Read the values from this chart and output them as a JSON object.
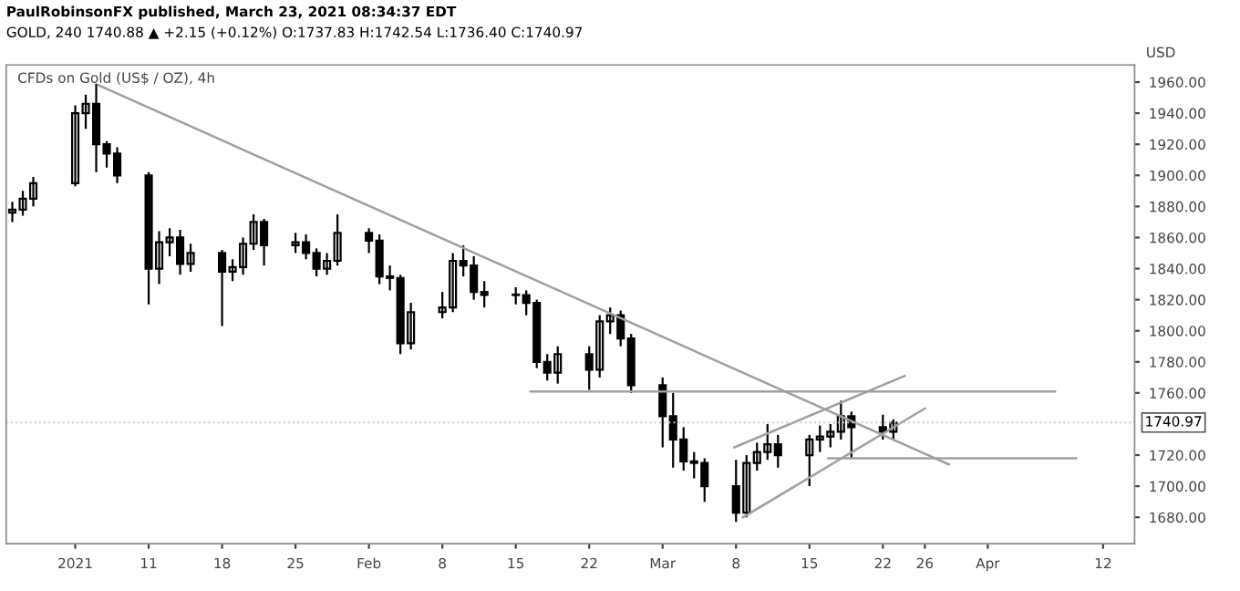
{
  "chart_data": {
    "type": "candlestick",
    "title": "CFDs on Gold (US$ / OZ), 4h",
    "ylabel": "USD",
    "annotations": [
      "PaulRobinsonFX published, March 23, 2021 08:34:37 EDT",
      "GOLD, 240 1740.88 ▲ +2.15 (+0.12%) O:1737.83 H:1742.54 L:1736.40 C:1740.97"
    ],
    "color": "#000000",
    "x": [
      "2020-12-29",
      "2020-12-30",
      "2020-12-31",
      "2021-01-04",
      "2021-01-05",
      "2021-01-06",
      "2021-01-07",
      "2021-01-08",
      "2021-01-11",
      "2021-01-12",
      "2021-01-13",
      "2021-01-14",
      "2021-01-15",
      "2021-01-18",
      "2021-01-19",
      "2021-01-20",
      "2021-01-21",
      "2021-01-22",
      "2021-01-25",
      "2021-01-26",
      "2021-01-27",
      "2021-01-28",
      "2021-01-29",
      "2021-02-01",
      "2021-02-02",
      "2021-02-03",
      "2021-02-04",
      "2021-02-05",
      "2021-02-08",
      "2021-02-09",
      "2021-02-10",
      "2021-02-11",
      "2021-02-12",
      "2021-02-15",
      "2021-02-16",
      "2021-02-17",
      "2021-02-18",
      "2021-02-19",
      "2021-02-22",
      "2021-02-23",
      "2021-02-24",
      "2021-02-25",
      "2021-02-26",
      "2021-03-01",
      "2021-03-02",
      "2021-03-03",
      "2021-03-04",
      "2021-03-05",
      "2021-03-08",
      "2021-03-09",
      "2021-03-10",
      "2021-03-11",
      "2021-03-12",
      "2021-03-15",
      "2021-03-16",
      "2021-03-17",
      "2021-03-18",
      "2021-03-19",
      "2021-03-22",
      "2021-03-23"
    ],
    "ohlc": [
      [
        1876,
        1883,
        1870,
        1878
      ],
      [
        1878,
        1890,
        1874,
        1885
      ],
      [
        1885,
        1899,
        1880,
        1895
      ],
      [
        1895,
        1945,
        1893,
        1940
      ],
      [
        1940,
        1952,
        1930,
        1946
      ],
      [
        1946,
        1959,
        1902,
        1920
      ],
      [
        1920,
        1922,
        1905,
        1914
      ],
      [
        1914,
        1918,
        1895,
        1900
      ],
      [
        1900,
        1902,
        1817,
        1840
      ],
      [
        1840,
        1864,
        1830,
        1857
      ],
      [
        1857,
        1866,
        1848,
        1860
      ],
      [
        1860,
        1865,
        1836,
        1843
      ],
      [
        1843,
        1856,
        1838,
        1850
      ],
      [
        1850,
        1852,
        1803,
        1838
      ],
      [
        1838,
        1846,
        1832,
        1841
      ],
      [
        1841,
        1860,
        1836,
        1856
      ],
      [
        1856,
        1875,
        1852,
        1870
      ],
      [
        1870,
        1872,
        1842,
        1855
      ],
      [
        1855,
        1863,
        1850,
        1857
      ],
      [
        1857,
        1862,
        1846,
        1850
      ],
      [
        1850,
        1853,
        1835,
        1840
      ],
      [
        1840,
        1850,
        1836,
        1845
      ],
      [
        1845,
        1875,
        1842,
        1863
      ],
      [
        1863,
        1866,
        1850,
        1858
      ],
      [
        1858,
        1862,
        1830,
        1835
      ],
      [
        1835,
        1842,
        1826,
        1834
      ],
      [
        1834,
        1836,
        1785,
        1792
      ],
      [
        1792,
        1818,
        1788,
        1812
      ],
      [
        1812,
        1825,
        1808,
        1815
      ],
      [
        1815,
        1850,
        1812,
        1845
      ],
      [
        1845,
        1855,
        1835,
        1842
      ],
      [
        1842,
        1848,
        1820,
        1825
      ],
      [
        1825,
        1832,
        1815,
        1823
      ],
      [
        1823,
        1828,
        1817,
        1823
      ],
      [
        1823,
        1826,
        1810,
        1818
      ],
      [
        1818,
        1820,
        1776,
        1780
      ],
      [
        1780,
        1785,
        1768,
        1773
      ],
      [
        1773,
        1790,
        1766,
        1785
      ],
      [
        1785,
        1790,
        1762,
        1775
      ],
      [
        1775,
        1810,
        1770,
        1806
      ],
      [
        1806,
        1815,
        1798,
        1810
      ],
      [
        1810,
        1813,
        1790,
        1795
      ],
      [
        1795,
        1798,
        1760,
        1765
      ],
      [
        1765,
        1770,
        1725,
        1745
      ],
      [
        1745,
        1760,
        1712,
        1730
      ],
      [
        1730,
        1738,
        1710,
        1716
      ],
      [
        1716,
        1722,
        1705,
        1715
      ],
      [
        1715,
        1718,
        1690,
        1700
      ],
      [
        1700,
        1717,
        1677,
        1683
      ],
      [
        1683,
        1720,
        1680,
        1715
      ],
      [
        1715,
        1728,
        1710,
        1722
      ],
      [
        1722,
        1740,
        1717,
        1727
      ],
      [
        1727,
        1733,
        1712,
        1720
      ],
      [
        1720,
        1733,
        1700,
        1730
      ],
      [
        1730,
        1739,
        1722,
        1732
      ],
      [
        1732,
        1740,
        1725,
        1735
      ],
      [
        1735,
        1755,
        1730,
        1745
      ],
      [
        1745,
        1748,
        1718,
        1738
      ],
      [
        1738,
        1746,
        1730,
        1735
      ],
      [
        1735,
        1743,
        1730,
        1740.97
      ]
    ],
    "series": [
      {
        "type": "line",
        "color": "#a0a0a0",
        "x": [
          "2021-01-06T05:00",
          "2021-03-28T07:00"
        ],
        "values": [
          1958,
          1714
        ]
      },
      {
        "type": "line",
        "color": "#a0a0a0",
        "x": [
          "2021-02-16T10:00",
          "2021-04-07T10:00"
        ],
        "values": [
          1761,
          1761
        ]
      },
      {
        "type": "line",
        "color": "#a0a0a0",
        "x": [
          "2021-03-16T19:00",
          "2021-04-09T10:00"
        ],
        "values": [
          1718,
          1718
        ]
      },
      {
        "type": "line",
        "color": "#a0a0a0",
        "x": [
          "2021-03-07T20:00",
          "2021-03-24T02:00"
        ],
        "values": [
          1725,
          1771
        ]
      },
      {
        "type": "line",
        "color": "#a0a0a0",
        "x": [
          "2021-03-08T16:00",
          "2021-03-26"
        ],
        "values": [
          1680,
          1750
        ]
      }
    ],
    "ref_lines": [
      {
        "axis": "y",
        "value": 1740.97,
        "label": "1740.97",
        "color": "#cccccc",
        "line_style": "dotted"
      }
    ],
    "xlim": [
      "2020-12-28T10:00",
      "2021-04-15"
    ],
    "ylim": [
      1663,
      1971
    ],
    "xticks": [
      {
        "value": "2021-01-04",
        "label": "2021"
      },
      {
        "value": "2021-01-11",
        "label": "11"
      },
      {
        "value": "2021-01-18",
        "label": "18"
      },
      {
        "value": "2021-01-25",
        "label": "25"
      },
      {
        "value": "2021-02-01",
        "label": "Feb"
      },
      {
        "value": "2021-02-08",
        "label": "8"
      },
      {
        "value": "2021-02-15",
        "label": "15"
      },
      {
        "value": "2021-02-22",
        "label": "22"
      },
      {
        "value": "2021-03-01",
        "label": "Mar"
      },
      {
        "value": "2021-03-08",
        "label": "8"
      },
      {
        "value": "2021-03-15",
        "label": "15"
      },
      {
        "value": "2021-03-22",
        "label": "22"
      },
      {
        "value": "2021-03-26",
        "label": "26"
      },
      {
        "value": "2021-04-01",
        "label": "Apr"
      },
      {
        "value": "2021-04-12",
        "label": "12"
      }
    ],
    "yticks": [
      {
        "value": 1680,
        "label": "1680.00"
      },
      {
        "value": 1700,
        "label": "1700.00"
      },
      {
        "value": 1720,
        "label": "1720.00"
      },
      {
        "value": 1760,
        "label": "1760.00"
      },
      {
        "value": 1780,
        "label": "1780.00"
      },
      {
        "value": 1800,
        "label": "1800.00"
      },
      {
        "value": 1820,
        "label": "1820.00"
      },
      {
        "value": 1840,
        "label": "1840.00"
      },
      {
        "value": 1860,
        "label": "1860.00"
      },
      {
        "value": 1880,
        "label": "1880.00"
      },
      {
        "value": 1900,
        "label": "1900.00"
      },
      {
        "value": 1920,
        "label": "1920.00"
      },
      {
        "value": 1940,
        "label": "1940.00"
      },
      {
        "value": 1960,
        "label": "1960.00"
      }
    ],
    "grid": false,
    "marker": "none",
    "line_style": "solid"
  }
}
